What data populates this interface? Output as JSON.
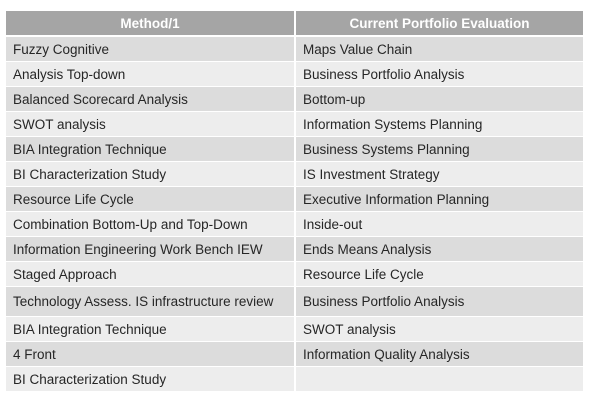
{
  "table": {
    "headers": [
      "Method/1",
      "Current Portfolio Evaluation"
    ],
    "rows": [
      [
        "Fuzzy Cognitive",
        "Maps Value Chain"
      ],
      [
        "Analysis Top-down",
        "Business Portfolio Analysis"
      ],
      [
        "Balanced Scorecard Analysis",
        "Bottom-up"
      ],
      [
        "SWOT analysis",
        "Information Systems Planning"
      ],
      [
        "BIA Integration Technique",
        "Business Systems Planning"
      ],
      [
        "BI Characterization Study",
        "IS Investment Strategy"
      ],
      [
        "Resource Life Cycle",
        "Executive Information Planning"
      ],
      [
        "Combination Bottom-Up and Top-Down",
        "Inside-out"
      ],
      [
        "Information Engineering Work Bench IEW",
        "Ends Means Analysis"
      ],
      [
        "Staged Approach",
        "Resource Life Cycle"
      ],
      [
        "Technology Assess. IS infrastructure review",
        "Business Portfolio Analysis"
      ],
      [
        "BIA Integration Technique",
        "SWOT analysis"
      ],
      [
        "4 Front",
        "Information Quality Analysis"
      ],
      [
        "BI Characterization Study",
        ""
      ]
    ]
  },
  "colors": {
    "header_bg": "#a5a5a5",
    "header_text": "#ffffff",
    "row_dark": "#dcdcdc",
    "row_light": "#ededed",
    "text": "#262626"
  }
}
